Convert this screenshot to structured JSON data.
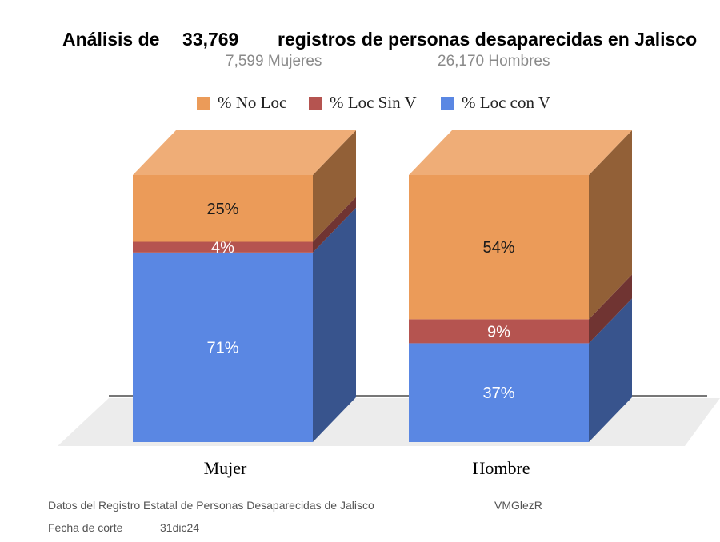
{
  "title": {
    "prefix": "Análisis de",
    "total": "33,769",
    "suffix": "registros de personas desaparecidas en Jalisco"
  },
  "subtitle": {
    "women": "7,599  Mujeres",
    "men": "26,170  Hombres"
  },
  "colors": {
    "no_loc": "#EB9B59",
    "loc_sin_v": "#B55450",
    "loc_con_v": "#5A87E3"
  },
  "chart_data": {
    "type": "bar",
    "stacked": true,
    "style": "3d",
    "categories": [
      "Mujer",
      "Hombre"
    ],
    "series": [
      {
        "name": "% Loc con V",
        "values": [
          71,
          37
        ]
      },
      {
        "name": "% Loc Sin V",
        "values": [
          4,
          9
        ]
      },
      {
        "name": "% No Loc",
        "values": [
          25,
          54
        ]
      }
    ],
    "legend": [
      "% No Loc",
      "% Loc Sin V",
      "% Loc con V"
    ],
    "legend_position": "top",
    "ylim": [
      0,
      100
    ],
    "grid": false
  },
  "footer": {
    "source": "Datos del Registro Estatal de Personas Desaparecidas de Jalisco",
    "author": "VMGlezR",
    "cutoff_label": "Fecha de corte",
    "cutoff_date": "31dic24"
  }
}
